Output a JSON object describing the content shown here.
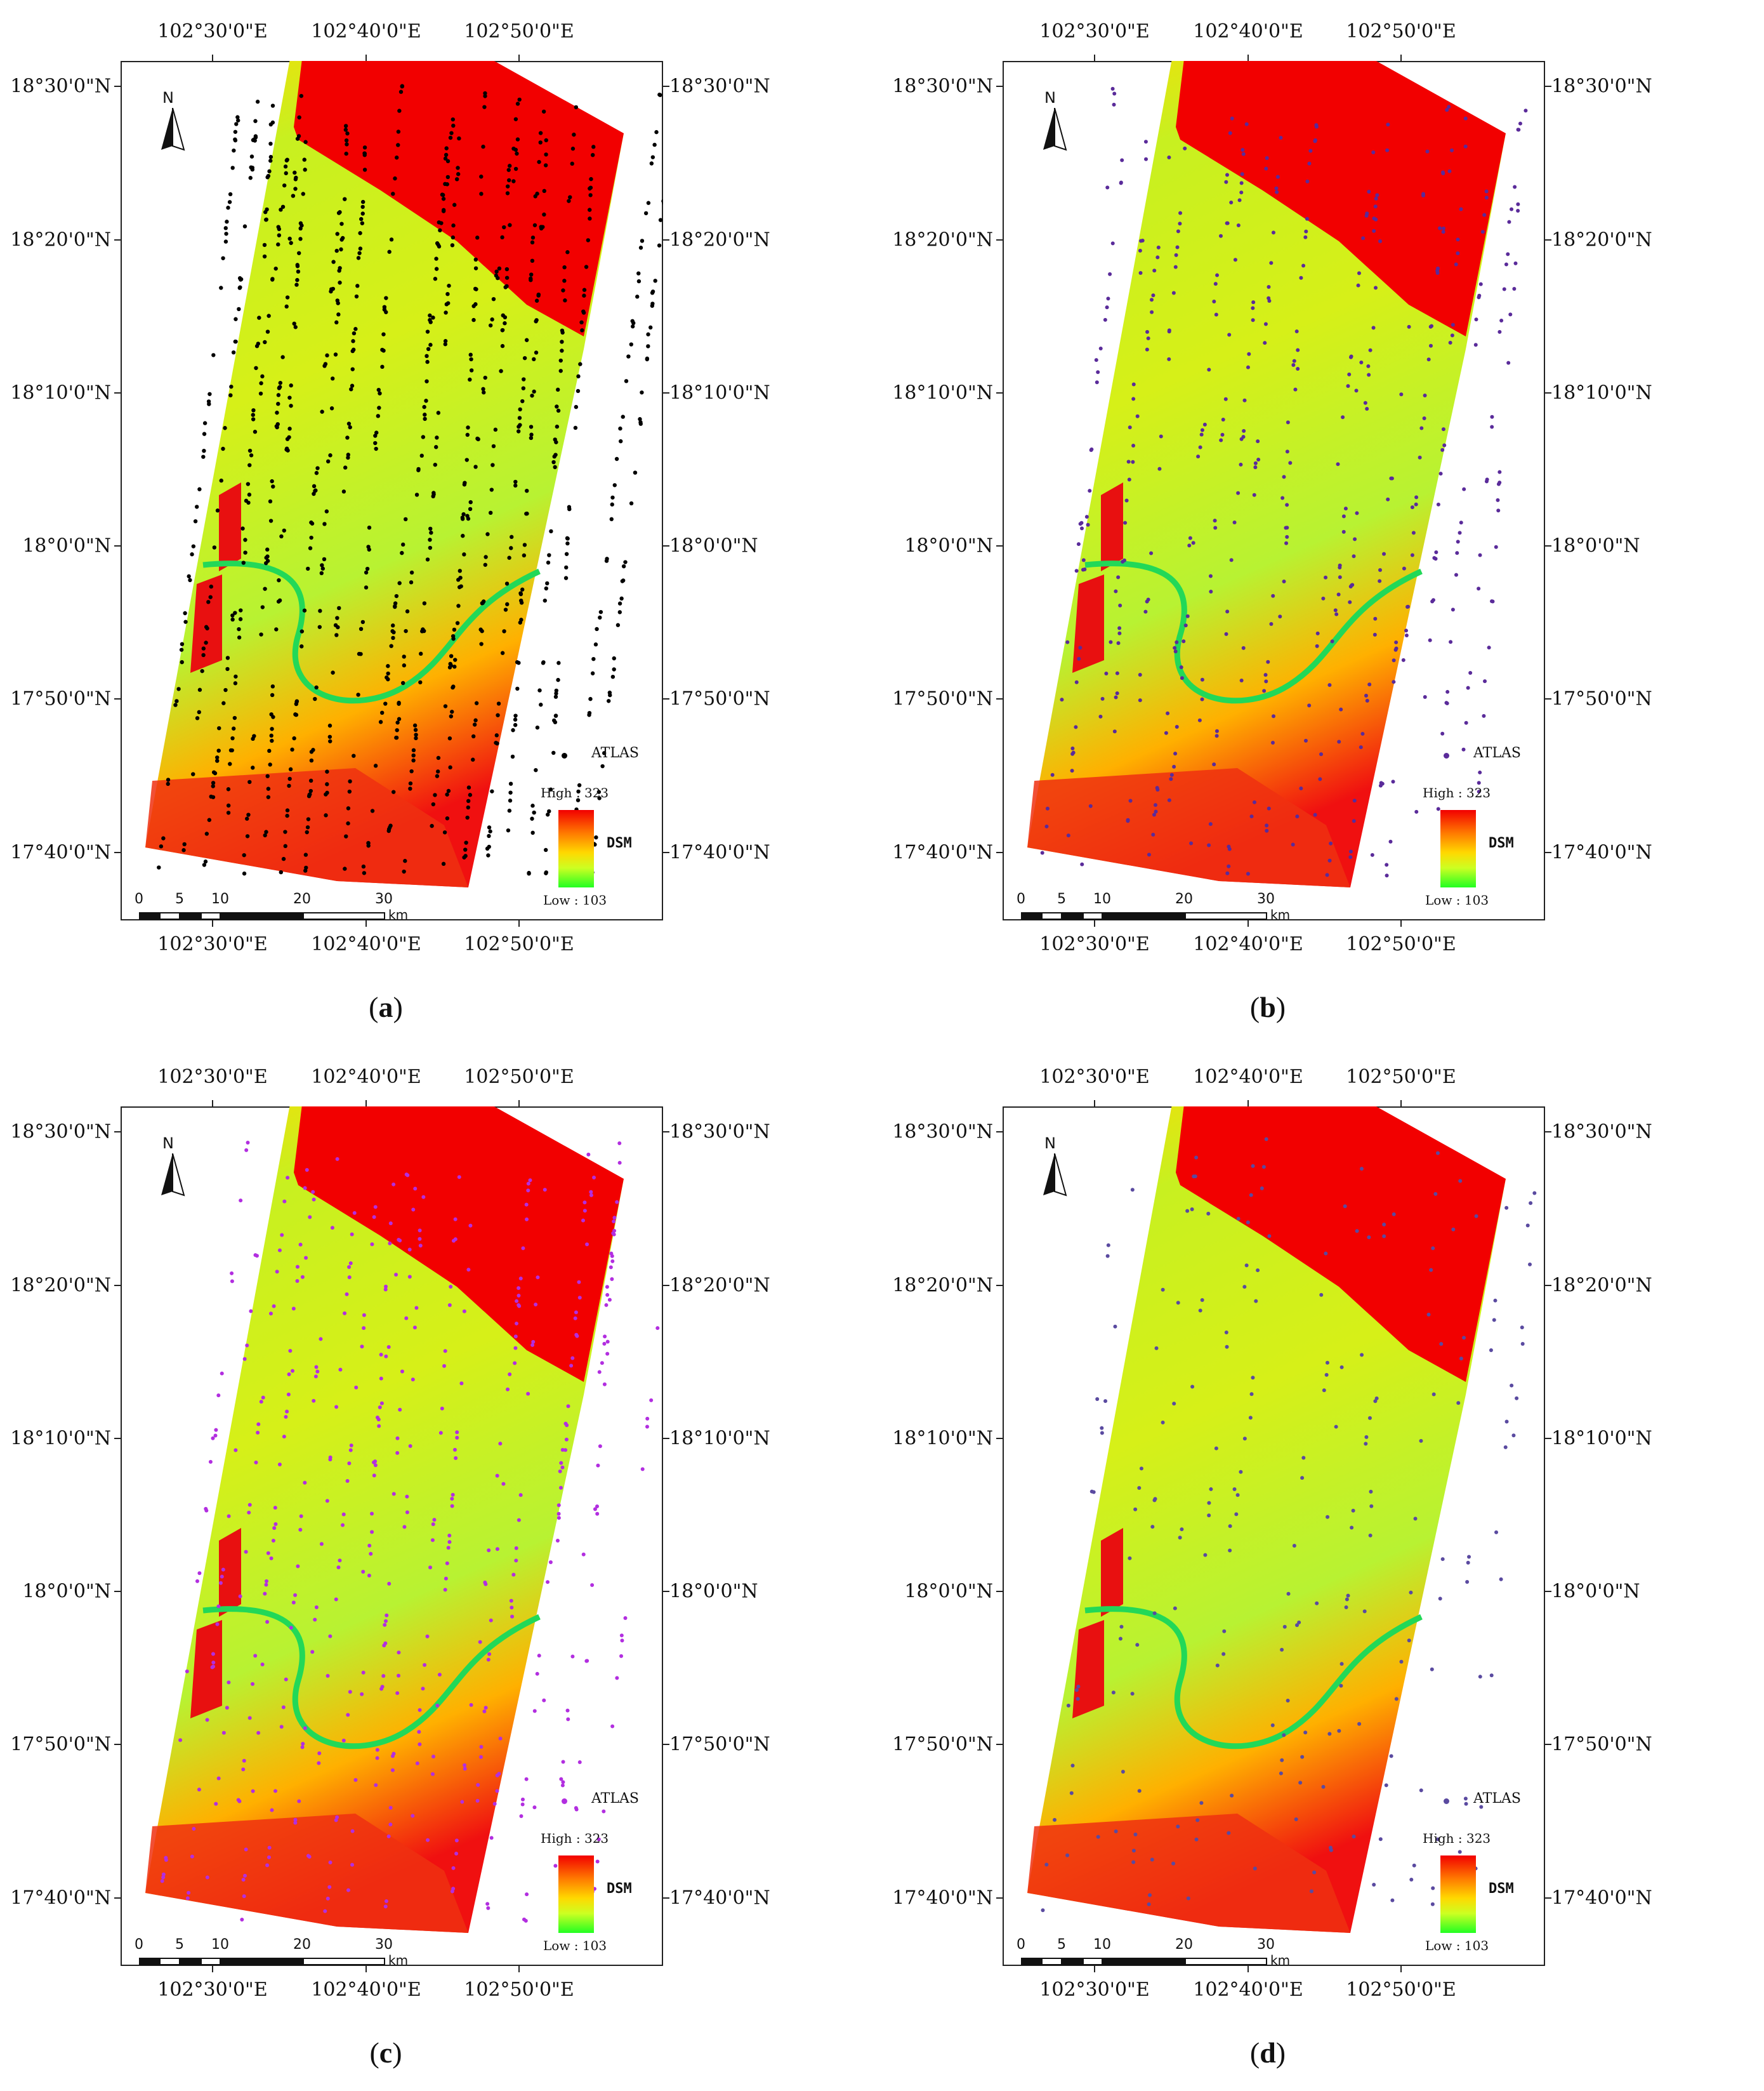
{
  "figure": {
    "lon_labels": [
      "102°30'0\"E",
      "102°40'0\"E",
      "102°50'0\"E"
    ],
    "lat_labels": [
      "18°30'0\"N",
      "18°20'0\"N",
      "18°10'0\"N",
      "18°0'0\"N",
      "17°50'0\"N",
      "17°40'0\"N"
    ],
    "north_label": "N",
    "legend": {
      "points_label": "ATLAS",
      "high_label": "High : 323",
      "ramp_label": "DSM",
      "low_label": "Low : 103",
      "colors": {
        "high": "#f20000",
        "mid": "#ffd800",
        "low": "#22ff22"
      }
    },
    "scale": {
      "labels": [
        "0",
        "5",
        "10",
        "20",
        "30"
      ],
      "unit": "km"
    }
  },
  "panels": [
    {
      "id": "a",
      "caption_letter": "a",
      "points_color": "#000000",
      "point_density": "very high"
    },
    {
      "id": "b",
      "caption_letter": "b",
      "points_color": "#5a2b9a",
      "point_density": "medium"
    },
    {
      "id": "c",
      "caption_letter": "c",
      "points_color": "#b22ee0",
      "point_density": "medium"
    },
    {
      "id": "d",
      "caption_letter": "d",
      "points_color": "#5a4aa0",
      "point_density": "low"
    }
  ]
}
